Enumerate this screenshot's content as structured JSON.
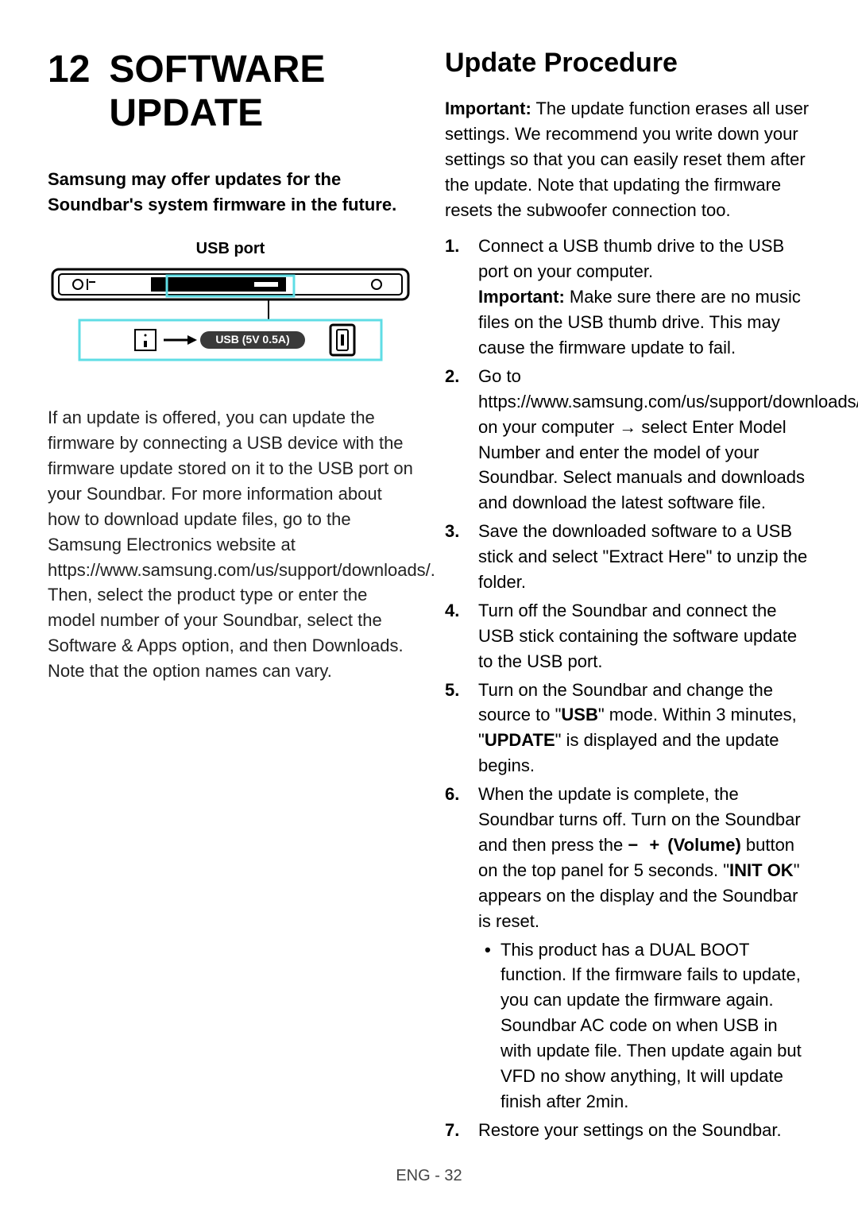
{
  "section": {
    "number": "12",
    "title": "SOFTWARE UPDATE"
  },
  "lead": "Samsung may offer updates for the Soundbar's system firmware in the future.",
  "diagram": {
    "caption": "USB port",
    "usb_label": "USB (5V 0.5A)",
    "stroke": "#000000",
    "highlight": "#5fdde5",
    "bg": "#ffffff",
    "label_bg": "#3a3a3a",
    "label_text": "#ffffff"
  },
  "left_body": "If an update is offered, you can update the firmware by connecting a USB device with the firmware update stored on it to the USB port on your Soundbar. For more information about how to download update files, go to the Samsung Electronics website at https://www.samsung.com/us/support/downloads/.\nThen, select the product type or enter the model number of your Soundbar, select the Software & Apps option, and then Downloads. Note that the option names can vary.",
  "right": {
    "heading": "Update Procedure",
    "important_label": "Important:",
    "important_text": " The update function erases all user settings. We recommend you write down your settings so that you can easily reset them after the update. Note that updating the firmware resets the subwoofer connection too.",
    "steps": [
      {
        "text": "Connect a USB thumb drive to the USB port on your computer.",
        "sub_important_label": "Important:",
        "sub_important_text": " Make sure there are no music files on the USB thumb drive. This may cause the firmware update to fail."
      },
      {
        "text": "Go to https://www.samsung.com/us/support/downloads/ on your computer → select Enter Model Number and enter the model of your Soundbar. Select manuals and downloads and download the latest software file."
      },
      {
        "text": "Save the downloaded software to a USB stick and select \"Extract Here\" to unzip the folder."
      },
      {
        "text": "Turn off the Soundbar and connect the USB stick containing the software update to the USB port."
      },
      {
        "pre": "Turn on the Soundbar and change the source to \"",
        "bold1": "USB",
        "mid": "\" mode. Within 3 minutes, \"",
        "bold2": "UPDATE",
        "post": "\" is displayed and the update begins."
      },
      {
        "pre": "When the update is complete, the Soundbar turns off. Turn on the Soundbar and then press the ",
        "vol_icons": "− +",
        "vol_label": " (Volume)",
        "mid": " button on the top panel for 5 seconds. \"",
        "bold1": "INIT OK",
        "post": "\" appears on the display and the Soundbar is reset.",
        "bullet": "This product has a DUAL BOOT function. If the firmware fails to update, you can update the firmware again. Soundbar AC code on when USB in with update file. Then update again but VFD no show anything, It will update finish after 2min."
      },
      {
        "text": "Restore your settings on the Soundbar."
      }
    ]
  },
  "footer": "ENG - 32"
}
